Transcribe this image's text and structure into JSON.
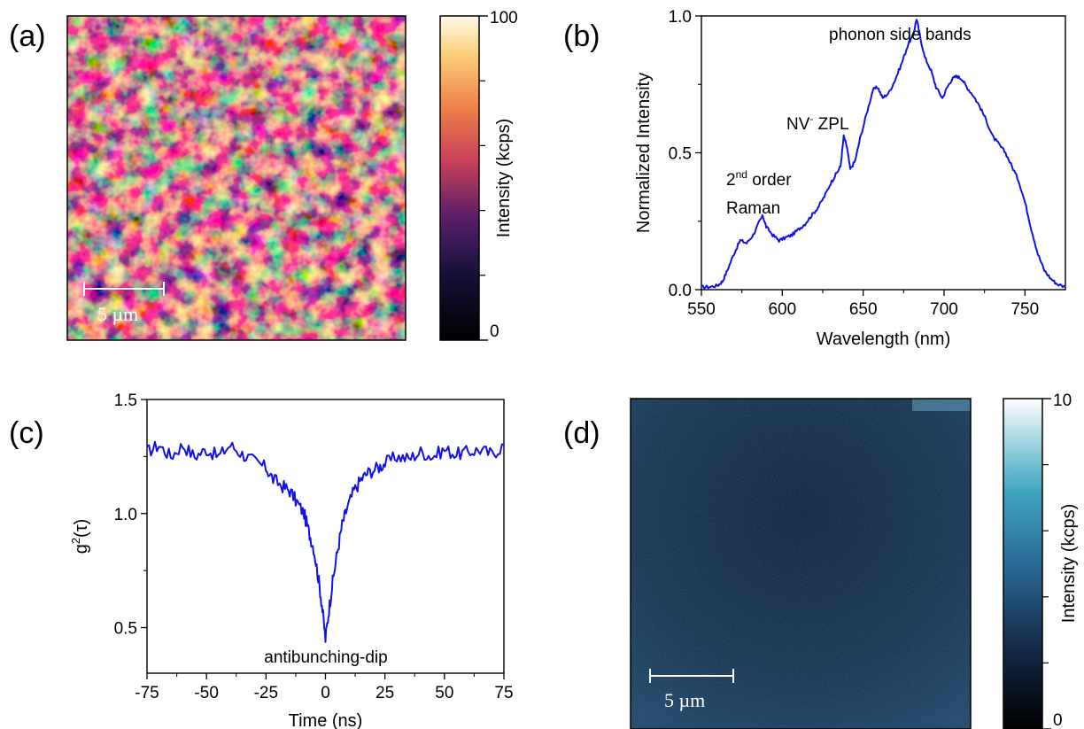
{
  "panels": {
    "a": "(a)",
    "b": "(b)",
    "c": "(c)",
    "d": "(d)"
  },
  "scale_bars": {
    "a": "5 µm",
    "d": "5 µm"
  },
  "chart_data": [
    {
      "id": "a",
      "type": "heatmap",
      "description_colormap": "black-purple-red-orange-yellow-white",
      "colorbar": {
        "label": "Intensity (kcps)",
        "min": 0,
        "max": 100,
        "tick_labels": [
          "0",
          "100"
        ],
        "minor_ticks": [
          20,
          40,
          60,
          80
        ]
      }
    },
    {
      "id": "b",
      "type": "line",
      "xlabel": "Wavelength (nm)",
      "ylabel": "Normalized Intensity",
      "xlim": [
        550,
        775
      ],
      "ylim": [
        0.0,
        1.0
      ],
      "xticks": [
        550,
        600,
        650,
        700,
        750
      ],
      "yticks": [
        0.0,
        0.5,
        1.0
      ],
      "ytick_labels": [
        "0.0",
        "0.5",
        "1.0"
      ],
      "color": "#1212e8",
      "annotations": {
        "phonon": "phonon side bands",
        "nv_prefix": "NV",
        "nv_sup": "-",
        "nv_suffix": " ZPL",
        "raman_prefix": "2",
        "raman_sup": "nd",
        "raman_suffix": " order",
        "raman_line2": "Raman"
      },
      "series": [
        {
          "x": [
            550,
            555,
            560,
            563,
            566,
            570,
            574,
            578,
            582,
            586,
            588,
            590,
            594,
            598,
            602,
            606,
            610,
            614,
            618,
            622,
            626,
            630,
            633,
            636,
            638,
            640,
            642,
            645,
            648,
            652,
            656,
            659,
            662,
            666,
            670,
            674,
            678,
            681,
            683,
            685,
            688,
            692,
            695,
            699,
            702,
            705,
            708,
            711,
            714,
            718,
            722,
            726,
            730,
            734,
            738,
            742,
            746,
            750,
            754,
            758,
            762,
            766,
            770,
            775
          ],
          "y": [
            0.01,
            0.01,
            0.015,
            0.03,
            0.07,
            0.13,
            0.18,
            0.17,
            0.2,
            0.25,
            0.27,
            0.23,
            0.2,
            0.18,
            0.19,
            0.2,
            0.22,
            0.24,
            0.27,
            0.3,
            0.34,
            0.39,
            0.42,
            0.45,
            0.56,
            0.52,
            0.44,
            0.47,
            0.55,
            0.64,
            0.73,
            0.74,
            0.7,
            0.72,
            0.77,
            0.83,
            0.9,
            0.93,
            0.99,
            0.93,
            0.85,
            0.8,
            0.74,
            0.7,
            0.74,
            0.77,
            0.78,
            0.77,
            0.74,
            0.71,
            0.67,
            0.62,
            0.56,
            0.53,
            0.5,
            0.45,
            0.4,
            0.32,
            0.22,
            0.13,
            0.07,
            0.04,
            0.02,
            0.01
          ]
        }
      ]
    },
    {
      "id": "c",
      "type": "line",
      "xlabel": "Time (ns)",
      "ylabel_main": "g",
      "ylabel_sup": "2",
      "ylabel_tail": "(τ)",
      "xlim": [
        -75,
        75
      ],
      "ylim": [
        0.3,
        1.5
      ],
      "xticks": [
        -75,
        -50,
        -25,
        0,
        25,
        50,
        75
      ],
      "yticks": [
        0.5,
        1.0,
        1.5
      ],
      "ytick_labels": [
        "0.5",
        "1.0",
        "1.5"
      ],
      "color": "#1212e8",
      "annotation": "antibunching-dip",
      "series": [
        {
          "x": [
            -75,
            -70,
            -65,
            -60,
            -55,
            -50,
            -45,
            -40,
            -35,
            -30,
            -25,
            -22,
            -18,
            -15,
            -12,
            -9,
            -7,
            -5,
            -3,
            -1.5,
            0,
            1.5,
            3,
            5,
            7,
            9,
            12,
            15,
            18,
            22,
            25,
            30,
            35,
            40,
            45,
            50,
            55,
            60,
            65,
            70,
            75
          ],
          "y": [
            1.27,
            1.3,
            1.25,
            1.3,
            1.25,
            1.28,
            1.25,
            1.3,
            1.26,
            1.23,
            1.2,
            1.15,
            1.12,
            1.1,
            1.05,
            1.0,
            0.92,
            0.85,
            0.72,
            0.6,
            0.45,
            0.58,
            0.7,
            0.83,
            0.95,
            1.02,
            1.1,
            1.15,
            1.18,
            1.2,
            1.22,
            1.25,
            1.24,
            1.27,
            1.25,
            1.28,
            1.26,
            1.27,
            1.28,
            1.26,
            1.3
          ]
        }
      ]
    },
    {
      "id": "d",
      "type": "heatmap",
      "description_colormap": "black-navy-steelblue-cyan-white",
      "colorbar": {
        "label": "Intensity (kcps)",
        "min": 0,
        "max": 10,
        "tick_labels": [
          "0",
          "10"
        ],
        "minor_ticks": [
          2,
          4,
          6,
          8
        ]
      }
    }
  ]
}
